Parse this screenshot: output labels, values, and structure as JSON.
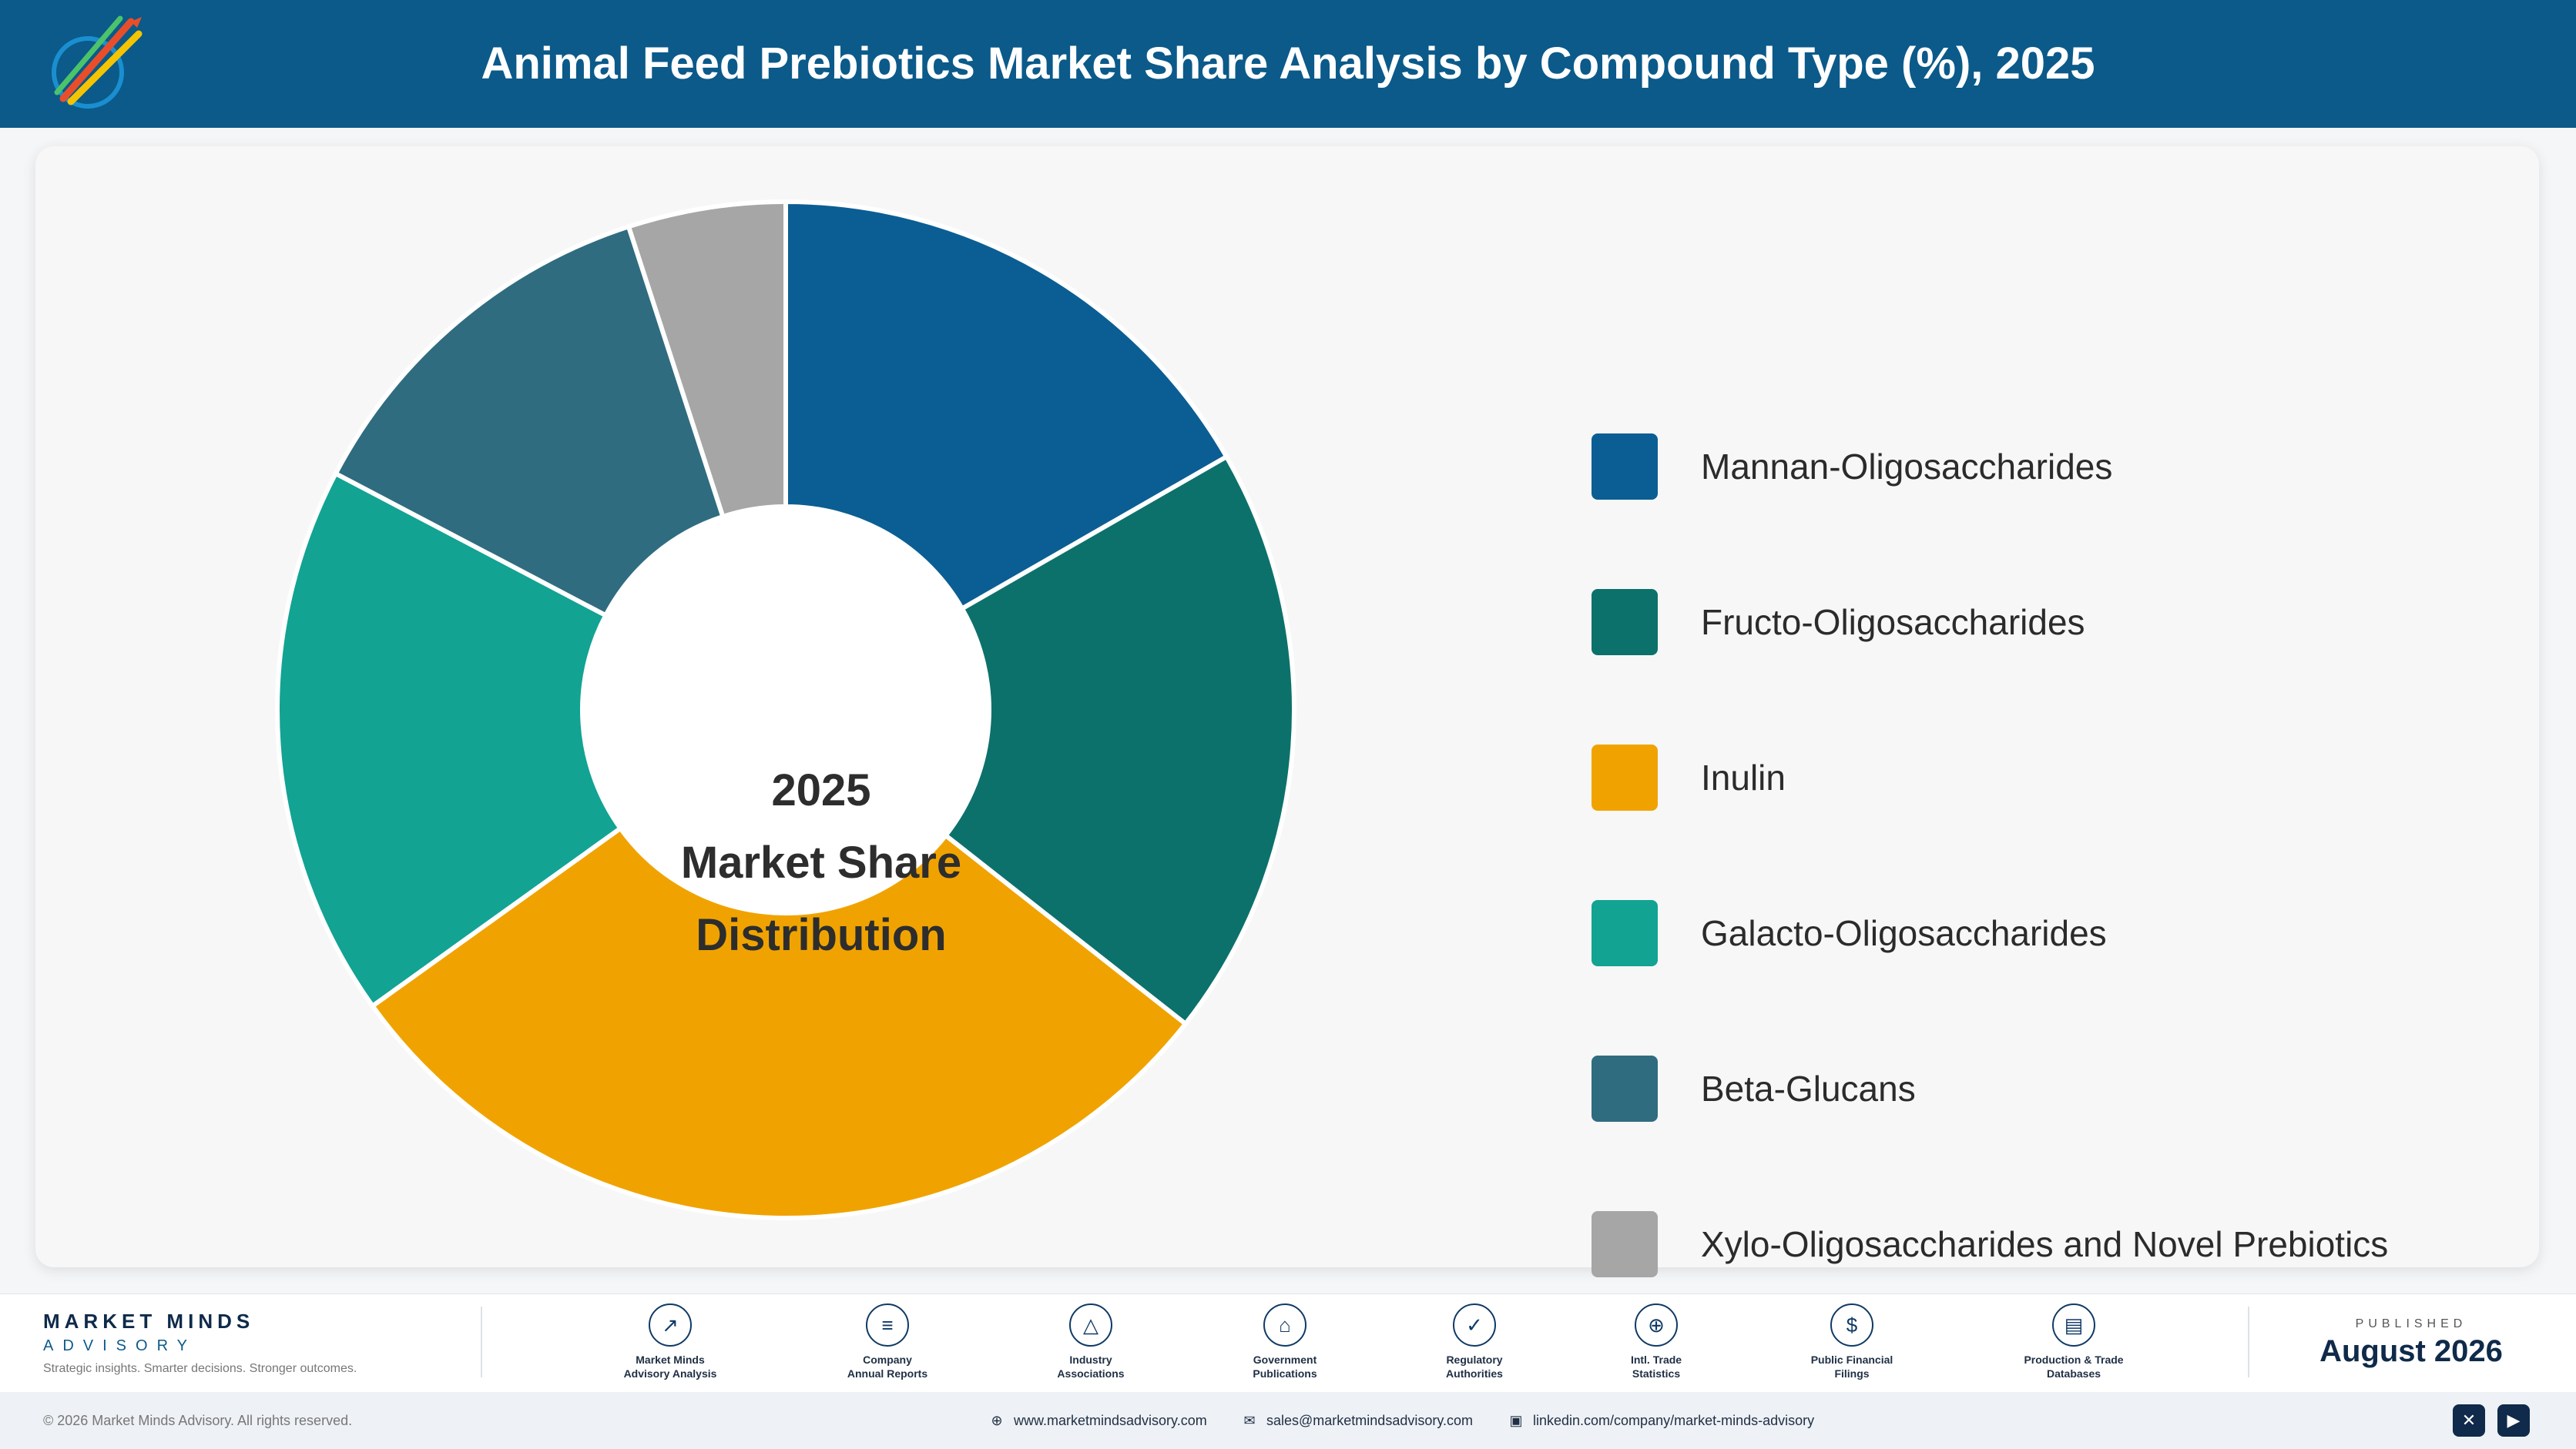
{
  "header": {
    "title": "Animal Feed Prebiotics Market Share Analysis by Compound Type (%), 2025"
  },
  "chart_data": {
    "type": "pie",
    "style": "donut",
    "title": "Animal Feed Prebiotics Market Share Analysis by Compound Type (%), 2025",
    "center_label": [
      "2025",
      "Market Share",
      "Distribution"
    ],
    "legend_placement": "right",
    "categories": [
      "Mannan-Oligosaccharides",
      "Fructo-Oligosaccharides",
      "Inulin",
      "Galacto-Oligosaccharides",
      "Beta-Glucans",
      "Xylo-Oligosaccharides and Novel Prebiotics"
    ],
    "values": [
      16.7,
      18.9,
      29.5,
      17.6,
      12.3,
      5.0
    ],
    "colors": [
      "#0b5e93",
      "#0c716b",
      "#f0a300",
      "#12a393",
      "#2f6c80",
      "#a6a6a6"
    ]
  },
  "footer": {
    "brand_name": "MARKET MINDS",
    "brand_sub": "ADVISORY",
    "tagline": "Strategic insights. Smarter decisions. Stronger outcomes.",
    "sources": [
      {
        "icon": "trend-chart-icon",
        "glyph": "↗",
        "line1": "Market Minds",
        "line2": "Advisory Analysis"
      },
      {
        "icon": "document-icon",
        "glyph": "≡",
        "line1": "Company",
        "line2": "Annual Reports"
      },
      {
        "icon": "network-icon",
        "glyph": "△",
        "line1": "Industry",
        "line2": "Associations"
      },
      {
        "icon": "government-building-icon",
        "glyph": "⌂",
        "line1": "Government",
        "line2": "Publications"
      },
      {
        "icon": "shield-check-icon",
        "glyph": "✓",
        "line1": "Regulatory",
        "line2": "Authorities"
      },
      {
        "icon": "globe-icon",
        "glyph": "⊕",
        "line1": "Intl. Trade",
        "line2": "Statistics"
      },
      {
        "icon": "coin-icon",
        "glyph": "$",
        "line1": "Public Financial",
        "line2": "Filings"
      },
      {
        "icon": "database-icon",
        "glyph": "▤",
        "line1": "Production & Trade",
        "line2": "Databases"
      }
    ],
    "published_label": "PUBLISHED",
    "published_date": "August 2026"
  },
  "bottombar": {
    "copyright": "© 2026 Market Minds Advisory. All rights reserved.",
    "website": "www.marketmindsadvisory.com",
    "email": "sales@marketmindsadvisory.com",
    "linkedin": "linkedin.com/company/market-minds-advisory",
    "social_x_glyph": "✕",
    "social_youtube_glyph": "▶"
  }
}
